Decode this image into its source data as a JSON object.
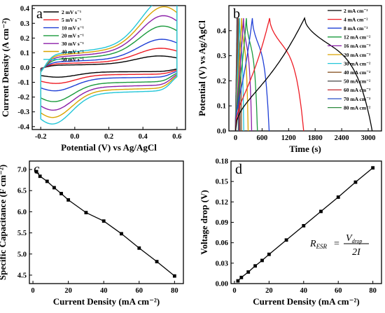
{
  "chart_data": [
    {
      "panel": "a",
      "type": "line",
      "xlabel": "Potential (V) vs Ag/AgCl",
      "ylabel": "Current Density (A cm⁻²)",
      "xlim": [
        -0.25,
        0.65
      ],
      "ylim": [
        -0.42,
        0.42
      ],
      "xticks": [
        -0.2,
        0.0,
        0.2,
        0.4,
        0.6
      ],
      "xtick_labels": [
        "-0.2",
        "0.0",
        "0.2",
        "0.4",
        "0.6"
      ],
      "yticks": [
        -0.4,
        -0.3,
        -0.2,
        -0.1,
        0.0,
        0.1,
        0.2,
        0.3,
        0.4
      ],
      "ytick_labels": [
        "-0.4",
        "-0.3",
        "-0.2",
        "-0.1",
        "0.0",
        "0.1",
        "0.2",
        "0.3",
        "0.4"
      ],
      "legend_position": "top-left",
      "series": [
        {
          "name": "2  mV s⁻¹",
          "color": "#000000",
          "v": 2
        },
        {
          "name": "5  mV s⁻¹",
          "color": "#ee1c25",
          "v": 5
        },
        {
          "name": "10 mV s⁻¹",
          "color": "#1f3fd6",
          "v": 10
        },
        {
          "name": "20 mV s⁻¹",
          "color": "#1a9a3c",
          "v": 20
        },
        {
          "name": "30 mV s⁻¹",
          "color": "#8b1fa8",
          "v": 30
        },
        {
          "name": "40 mV s⁻¹",
          "color": "#d9a400",
          "v": 40
        },
        {
          "name": "50 mV s⁻¹",
          "color": "#22c6d8",
          "v": 50
        }
      ]
    },
    {
      "panel": "b",
      "type": "line",
      "xlabel": "Time (s)",
      "ylabel": "Potential (V) vs Ag/AgCl",
      "xlim": [
        -150,
        3300
      ],
      "ylim": [
        0.0,
        0.5
      ],
      "xticks": [
        0,
        600,
        1200,
        1800,
        2400,
        3000
      ],
      "xtick_labels": [
        "0",
        "600",
        "1200",
        "1800",
        "2400",
        "3000"
      ],
      "yticks": [
        0.0,
        0.1,
        0.2,
        0.3,
        0.4
      ],
      "ytick_labels": [
        "0.0",
        "0.1",
        "0.2",
        "0.3",
        "0.4"
      ],
      "legend_position": "top-right",
      "series": [
        {
          "name": "2  mA cm⁻²",
          "color": "#000000",
          "charge": 1560,
          "total": 3090
        },
        {
          "name": "4  mA cm⁻²",
          "color": "#ee1c25",
          "charge": 770,
          "total": 1540
        },
        {
          "name": "8  mA cm⁻²",
          "color": "#1f3fd6",
          "charge": 380,
          "total": 760
        },
        {
          "name": "12 mA cm⁻²",
          "color": "#1a9a3c",
          "charge": 245,
          "total": 495
        },
        {
          "name": "16 mA cm⁻²",
          "color": "#8b1fa8",
          "charge": 180,
          "total": 365
        },
        {
          "name": "20 mA cm⁻²",
          "color": "#d9a400",
          "charge": 140,
          "total": 285
        },
        {
          "name": "30 mA cm⁻²",
          "color": "#22c6d8",
          "charge": 92,
          "total": 185
        },
        {
          "name": "40 mA cm⁻²",
          "color": "#8b5a2b",
          "charge": 67,
          "total": 135
        },
        {
          "name": "50 mA cm⁻²",
          "color": "#555555",
          "charge": 52,
          "total": 105
        },
        {
          "name": "60 mA cm⁻²",
          "color": "#c1272d",
          "charge": 42,
          "total": 85
        },
        {
          "name": "70 mA cm⁻²",
          "color": "#2b4fc7",
          "charge": 36,
          "total": 72
        },
        {
          "name": "80 mA cm⁻²",
          "color": "#2d8a3e",
          "charge": 31,
          "total": 62
        }
      ]
    },
    {
      "panel": "c",
      "type": "line",
      "xlabel": "Current Density (mA cm⁻²)",
      "ylabel": "Specific Capacitance (F cm⁻²)",
      "xlim": [
        -2,
        85
      ],
      "ylim": [
        4.3,
        7.2
      ],
      "xticks": [
        0,
        20,
        40,
        60,
        80
      ],
      "xtick_labels": [
        "0",
        "20",
        "40",
        "60",
        "80"
      ],
      "yticks": [
        4.5,
        5.0,
        5.5,
        6.0,
        6.5,
        7.0
      ],
      "ytick_labels": [
        "4.5",
        "5.0",
        "5.5",
        "6.0",
        "6.5",
        "7.0"
      ],
      "x": [
        2,
        4,
        8,
        12,
        16,
        20,
        30,
        40,
        50,
        60,
        70,
        80
      ],
      "y": [
        6.95,
        6.84,
        6.72,
        6.57,
        6.43,
        6.28,
        5.98,
        5.78,
        5.48,
        5.14,
        4.82,
        4.48
      ]
    },
    {
      "panel": "d",
      "type": "line",
      "xlabel": "Current Density (mA cm⁻²)",
      "ylabel": "Voltage drop (V)",
      "xlim": [
        -2,
        85
      ],
      "ylim": [
        0.0,
        0.18
      ],
      "xticks": [
        0,
        20,
        40,
        60,
        80
      ],
      "xtick_labels": [
        "0",
        "20",
        "40",
        "60",
        "80"
      ],
      "yticks": [
        0.0,
        0.03,
        0.06,
        0.09,
        0.12,
        0.15,
        0.18
      ],
      "ytick_labels": [
        "0.00",
        "0.03",
        "0.06",
        "0.09",
        "0.12",
        "0.15",
        "0.18"
      ],
      "x": [
        2,
        4,
        8,
        12,
        16,
        20,
        30,
        40,
        50,
        60,
        70,
        80
      ],
      "y": [
        0.004,
        0.009,
        0.017,
        0.026,
        0.034,
        0.043,
        0.064,
        0.085,
        0.106,
        0.127,
        0.149,
        0.17
      ],
      "annotation": {
        "lhs": "R",
        "lhs_sub": "ESR",
        "eq": "=",
        "num": "V",
        "num_sub": "drop",
        "den": "2I"
      }
    }
  ]
}
